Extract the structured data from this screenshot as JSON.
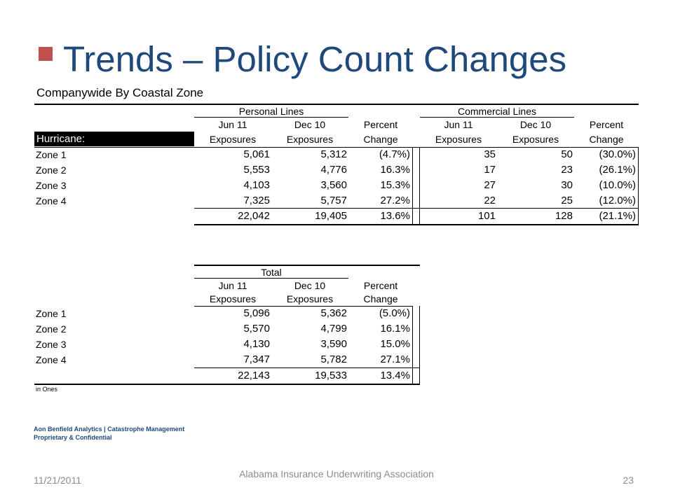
{
  "slide": {
    "title": "Trends – Policy Count Changes",
    "subtitle": "Companywide By Coastal Zone"
  },
  "table1": {
    "group_personal": "Personal Lines",
    "group_commercial": "Commercial Lines",
    "headers": {
      "jun": "Jun 11",
      "dec": "Dec 10",
      "percent": "Percent",
      "exposures": "Exposures",
      "change": "Change"
    },
    "section_label": "Hurricane:",
    "rows": [
      {
        "zone": "Zone 1",
        "p_jun": "5,061",
        "p_dec": "5,312",
        "p_chg": "(4.7%)",
        "c_jun": "35",
        "c_dec": "50",
        "c_chg": "(30.0%)"
      },
      {
        "zone": "Zone 2",
        "p_jun": "5,553",
        "p_dec": "4,776",
        "p_chg": "16.3%",
        "c_jun": "17",
        "c_dec": "23",
        "c_chg": "(26.1%)"
      },
      {
        "zone": "Zone 3",
        "p_jun": "4,103",
        "p_dec": "3,560",
        "p_chg": "15.3%",
        "c_jun": "27",
        "c_dec": "30",
        "c_chg": "(10.0%)"
      },
      {
        "zone": "Zone 4",
        "p_jun": "7,325",
        "p_dec": "5,757",
        "p_chg": "27.2%",
        "c_jun": "22",
        "c_dec": "25",
        "c_chg": "(12.0%)"
      }
    ],
    "totals": {
      "p_jun": "22,042",
      "p_dec": "19,405",
      "p_chg": "13.6%",
      "c_jun": "101",
      "c_dec": "128",
      "c_chg": "(21.1%)"
    }
  },
  "table2": {
    "group_total": "Total",
    "rows": [
      {
        "zone": "Zone 1",
        "jun": "5,096",
        "dec": "5,362",
        "chg": "(5.0%)"
      },
      {
        "zone": "Zone 2",
        "jun": "5,570",
        "dec": "4,799",
        "chg": "16.1%"
      },
      {
        "zone": "Zone 3",
        "jun": "4,130",
        "dec": "3,590",
        "chg": "15.0%"
      },
      {
        "zone": "Zone 4",
        "jun": "7,347",
        "dec": "5,782",
        "chg": "27.1%"
      }
    ],
    "totals": {
      "jun": "22,143",
      "dec": "19,533",
      "chg": "13.4%"
    },
    "units_note": "in Ones"
  },
  "footer": {
    "org_line1": "Aon Benfield Analytics | Catastrophe Management",
    "org_line2": "Proprietary & Confidential",
    "date": "11/21/2011",
    "center": "Alabama Insurance Underwriting Association",
    "page": "23"
  },
  "colors": {
    "title": "#1f497d",
    "bullet": "#c0504d",
    "footer_text": "#8c8c8c"
  }
}
